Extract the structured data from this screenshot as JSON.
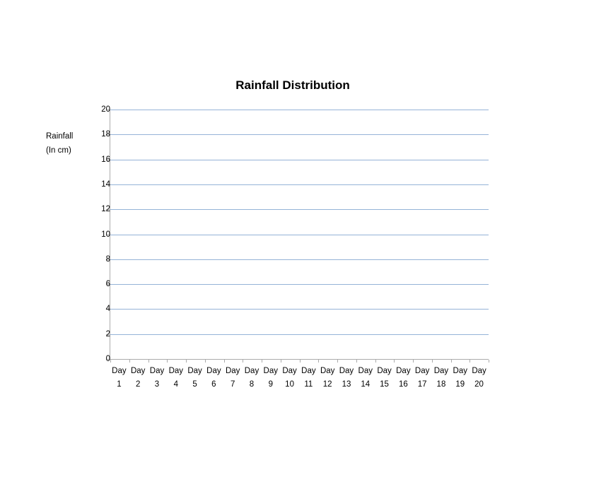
{
  "chart_data": {
    "type": "bar",
    "title": "Rainfall Distribution",
    "ylabel": "Rainfall (In cm)",
    "ylabel_lines": [
      "Rainfall",
      "(In cm)"
    ],
    "xlabel": "",
    "categories": [
      "Day 1",
      "Day 2",
      "Day 3",
      "Day 4",
      "Day 5",
      "Day 6",
      "Day 7",
      "Day 8",
      "Day 9",
      "Day 10",
      "Day 11",
      "Day 12",
      "Day 13",
      "Day 14",
      "Day 15",
      "Day 16",
      "Day 17",
      "Day 18",
      "Day 19",
      "Day 20"
    ],
    "series": [],
    "values": [],
    "y_ticks": [
      0,
      2,
      4,
      6,
      8,
      10,
      12,
      14,
      16,
      18,
      20
    ],
    "ylim": [
      0,
      20
    ],
    "grid": true,
    "legend": false,
    "colors": {
      "gridline": "#95B3D7",
      "axis": "#ABABAB",
      "text": "#000000"
    }
  }
}
